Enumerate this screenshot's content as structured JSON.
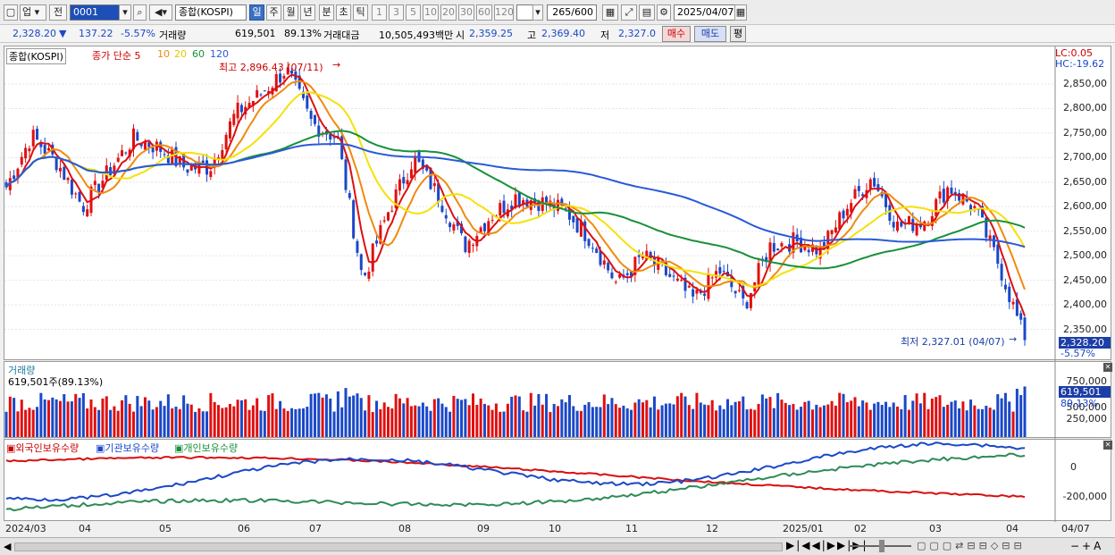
{
  "toolbar": {
    "market": "업",
    "prev": "전",
    "code": "0001",
    "name": "종합(KOSPI)",
    "period_tabs": [
      "일",
      "주",
      "월",
      "년",
      "분",
      "초",
      "틱"
    ],
    "active_period": "일",
    "intervals": [
      "1",
      "3",
      "5",
      "10",
      "20",
      "30",
      "60",
      "120"
    ],
    "count": "265",
    "count_total": "/600",
    "date": "2025/04/07"
  },
  "info": {
    "price": "2,328.20",
    "change": "137.22",
    "change_pct": "-5.57%",
    "volume_label": "거래량",
    "volume": "619,501",
    "volume_pct": "89.13%",
    "amount_label": "거래대금",
    "amount": "10,505,493백만",
    "open_label": "시",
    "open": "2,359.25",
    "high_label": "고",
    "high": "2,369.40",
    "low_label": "저",
    "low": "2,327.0",
    "buy_btn": "매수",
    "sell_btn": "매도",
    "eval_btn": "평"
  },
  "main": {
    "legend_name": "종합(KOSPI)",
    "legend_ma_title": "종가 단순 5",
    "legend_ma": [
      "10",
      "20",
      "60",
      "120"
    ],
    "high_note": "최고 2,896.43 (07/11)",
    "low_note": "최저 2,327.01 (04/07)",
    "lc": "LC:0.05",
    "hc": "HC:-19.62",
    "price_tag": "2,328.20",
    "pct_tag": "-5.57%",
    "y_ticks": [
      "2,850,00",
      "2,800,00",
      "2,750,00",
      "2,700,00",
      "2,650,00",
      "2,600,00",
      "2,550,00",
      "2,500,00",
      "2,450,00",
      "2,400,00",
      "2,350,00"
    ]
  },
  "volume_panel": {
    "title": "거래량",
    "value_label": "619,501주(89.13%)",
    "y_ticks": [
      "750,000",
      "500,000",
      "250,000"
    ],
    "tag": "619,501",
    "pct": "89.13%"
  },
  "holders_panel": {
    "legend": [
      "외국인보유수량",
      "기관보유수량",
      "개인보유수량"
    ],
    "y_ticks": [
      "0",
      "-200,000"
    ]
  },
  "x_labels": [
    "2024/03",
    "04",
    "05",
    "06",
    "07",
    "08",
    "09",
    "10",
    "11",
    "12",
    "2025/01",
    "02",
    "03",
    "04"
  ],
  "x_right": "04/07",
  "colors": {
    "up": "#e01010",
    "down": "#1a48c8",
    "ma5": "#dd1010",
    "ma10": "#f08a10",
    "ma20": "#f5e10a",
    "ma60": "#18903a",
    "ma120": "#2a5ad8"
  },
  "chart_data": {
    "type": "candlestick",
    "title": "종합(KOSPI)",
    "x_start": "2024/03",
    "x_end": "2025/04/07",
    "ylim": [
      2327,
      2900
    ],
    "price_path": [
      [
        "2024/03",
        2640
      ],
      [
        "2024/04",
        2745
      ],
      [
        "2024/04",
        2690
      ],
      [
        "2024/04",
        2600
      ],
      [
        "2024/05",
        2670
      ],
      [
        "2024/05",
        2740
      ],
      [
        "2024/05",
        2720
      ],
      [
        "2024/06",
        2680
      ],
      [
        "2024/06",
        2680
      ],
      [
        "2024/06",
        2790
      ],
      [
        "2024/07",
        2830
      ],
      [
        "2024/07",
        2880
      ],
      [
        "2024/07",
        2770
      ],
      [
        "2024/08",
        2740
      ],
      [
        "2024/08",
        2450
      ],
      [
        "2024/08",
        2590
      ],
      [
        "2024/08",
        2700
      ],
      [
        "2024/09",
        2620
      ],
      [
        "2024/09",
        2520
      ],
      [
        "2024/09",
        2580
      ],
      [
        "2024/10",
        2620
      ],
      [
        "2024/10",
        2610
      ],
      [
        "2024/10",
        2590
      ],
      [
        "2024/11",
        2530
      ],
      [
        "2024/11",
        2440
      ],
      [
        "2024/11",
        2500
      ],
      [
        "2024/12",
        2460
      ],
      [
        "2024/12",
        2410
      ],
      [
        "2024/12",
        2470
      ],
      [
        "2025/01",
        2400
      ],
      [
        "2025/01",
        2520
      ],
      [
        "2025/01",
        2530
      ],
      [
        "2025/02",
        2510
      ],
      [
        "2025/02",
        2600
      ],
      [
        "2025/02",
        2660
      ],
      [
        "2025/03",
        2560
      ],
      [
        "2025/03",
        2570
      ],
      [
        "2025/03",
        2640
      ],
      [
        "2025/04",
        2600
      ],
      [
        "2025/04",
        2480
      ],
      [
        "2025/04/07",
        2328
      ]
    ]
  }
}
